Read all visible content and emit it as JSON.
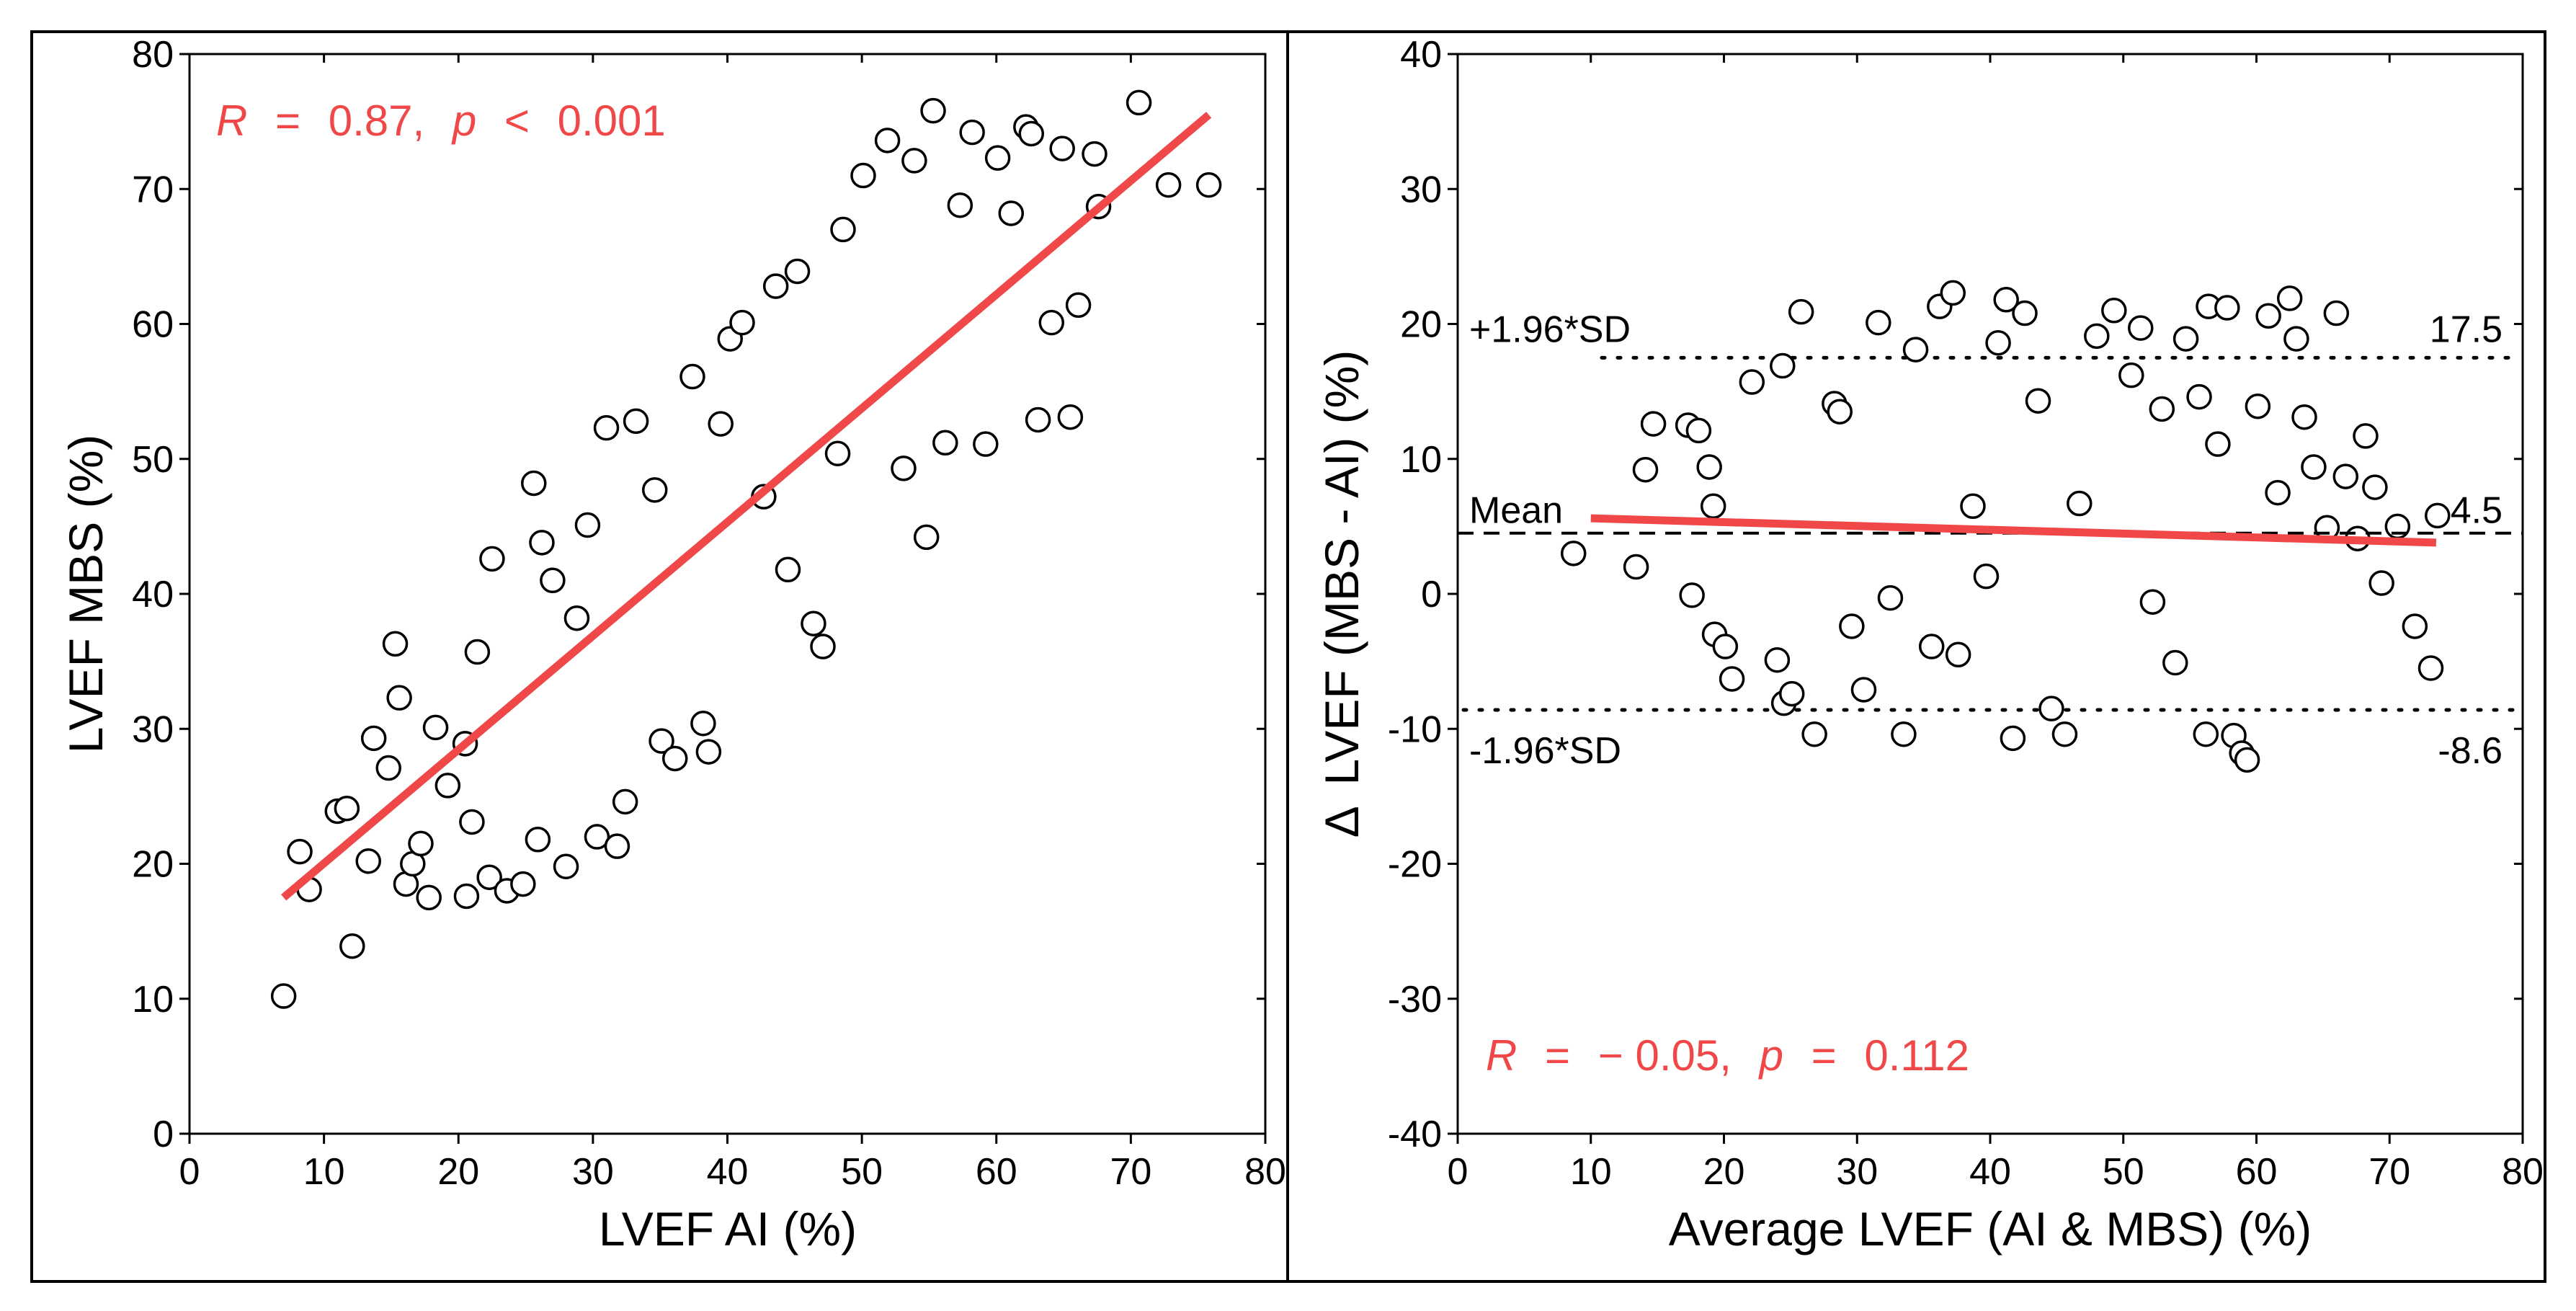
{
  "colors": {
    "fit": "#f04848",
    "stat": "#f04848",
    "axis": "#000000",
    "marker_fill": "#ffffff",
    "marker_stroke": "#000000"
  },
  "chart_data": [
    {
      "type": "scatter",
      "xlabel": "LVEF AI (%)",
      "ylabel": "LVEF MBS (%)",
      "xlim": [
        0,
        80
      ],
      "ylim": [
        0,
        80
      ],
      "xticks": [
        0,
        10,
        20,
        30,
        40,
        50,
        60,
        70,
        80
      ],
      "yticks": [
        0,
        10,
        20,
        30,
        40,
        50,
        60,
        70,
        80
      ],
      "xtick_labels": [
        "0",
        "10",
        "20",
        "30",
        "40",
        "50",
        "60",
        "70",
        "80"
      ],
      "ytick_labels": [
        "0",
        "10",
        "20",
        "30",
        "40",
        "50",
        "60",
        "70",
        "80"
      ],
      "stat_parts": [
        "R",
        "=",
        "0.87,",
        "p",
        "<",
        "0.001"
      ],
      "fit_line": {
        "x": [
          7,
          75.8
        ],
        "y": [
          17.5,
          75.5
        ]
      },
      "scatter_points": [
        [
          7.0,
          10.2
        ],
        [
          12.1,
          13.9
        ],
        [
          8.2,
          20.9
        ],
        [
          8.9,
          18.1
        ],
        [
          11.0,
          23.9
        ],
        [
          11.7,
          24.1
        ],
        [
          13.3,
          20.2
        ],
        [
          13.7,
          29.3
        ],
        [
          14.8,
          27.1
        ],
        [
          15.3,
          36.3
        ],
        [
          15.6,
          32.3
        ],
        [
          16.1,
          18.5
        ],
        [
          16.6,
          20.0
        ],
        [
          17.2,
          21.5
        ],
        [
          17.8,
          17.5
        ],
        [
          18.3,
          30.1
        ],
        [
          19.2,
          25.8
        ],
        [
          20.5,
          28.9
        ],
        [
          20.6,
          17.6
        ],
        [
          21.0,
          23.1
        ],
        [
          21.4,
          35.7
        ],
        [
          22.3,
          19.0
        ],
        [
          22.5,
          42.6
        ],
        [
          23.6,
          18.0
        ],
        [
          24.8,
          18.5
        ],
        [
          25.6,
          48.2
        ],
        [
          25.9,
          21.8
        ],
        [
          26.2,
          43.8
        ],
        [
          27.0,
          41.0
        ],
        [
          28.0,
          19.8
        ],
        [
          28.8,
          38.2
        ],
        [
          29.6,
          45.1
        ],
        [
          30.3,
          22.0
        ],
        [
          31.0,
          52.3
        ],
        [
          31.8,
          21.3
        ],
        [
          32.4,
          24.6
        ],
        [
          33.2,
          52.8
        ],
        [
          34.6,
          47.7
        ],
        [
          35.1,
          29.1
        ],
        [
          36.1,
          27.8
        ],
        [
          37.4,
          56.1
        ],
        [
          38.2,
          30.4
        ],
        [
          38.6,
          28.3
        ],
        [
          39.5,
          52.6
        ],
        [
          40.2,
          58.9
        ],
        [
          41.1,
          60.1
        ],
        [
          42.7,
          47.2
        ],
        [
          43.6,
          62.8
        ],
        [
          44.5,
          41.8
        ],
        [
          45.2,
          63.9
        ],
        [
          46.4,
          37.8
        ],
        [
          47.1,
          36.1
        ],
        [
          48.2,
          50.4
        ],
        [
          48.6,
          67.0
        ],
        [
          50.1,
          71.0
        ],
        [
          51.9,
          73.6
        ],
        [
          53.1,
          49.3
        ],
        [
          53.9,
          72.1
        ],
        [
          54.8,
          44.2
        ],
        [
          55.3,
          75.8
        ],
        [
          56.2,
          51.2
        ],
        [
          57.3,
          68.8
        ],
        [
          58.2,
          74.2
        ],
        [
          59.2,
          51.1
        ],
        [
          60.1,
          72.3
        ],
        [
          61.1,
          68.2
        ],
        [
          62.2,
          74.6
        ],
        [
          62.6,
          74.1
        ],
        [
          63.1,
          52.9
        ],
        [
          64.1,
          60.1
        ],
        [
          64.9,
          73.0
        ],
        [
          65.5,
          53.1
        ],
        [
          66.1,
          61.4
        ],
        [
          67.3,
          72.6
        ],
        [
          67.6,
          68.7
        ],
        [
          70.6,
          76.4
        ],
        [
          72.8,
          70.3
        ],
        [
          75.8,
          70.3
        ]
      ]
    },
    {
      "type": "scatter",
      "xlabel": "Average LVEF (AI & MBS) (%)",
      "ylabel_parts": [
        "Δ",
        "LVEF (MBS - AI) (%)"
      ],
      "xlim": [
        0,
        80
      ],
      "ylim": [
        -40,
        40
      ],
      "xticks": [
        0,
        10,
        20,
        30,
        40,
        50,
        60,
        70,
        80
      ],
      "yticks": [
        -40,
        -30,
        -20,
        -10,
        0,
        10,
        20,
        30,
        40
      ],
      "xtick_labels": [
        "0",
        "10",
        "20",
        "30",
        "40",
        "50",
        "60",
        "70",
        "80"
      ],
      "ytick_labels": [
        "-40",
        "-30",
        "-20",
        "-10",
        "0",
        "10",
        "20",
        "30",
        "40"
      ],
      "stat_parts": [
        "R",
        "=",
        "− 0.05,",
        "p",
        "=",
        "0.112"
      ],
      "fit_line": {
        "x": [
          10,
          73.5
        ],
        "y": [
          5.6,
          3.8
        ]
      },
      "mean": 4.5,
      "upper_loa": 17.5,
      "lower_loa": -8.6,
      "labels": {
        "mean_label": "Mean",
        "mean_value": "4.5",
        "upper_label": "+1.96*SD",
        "upper_value": "17.5",
        "lower_label": "-1.96*SD",
        "lower_value": "-8.6"
      },
      "scatter_points": [
        [
          8.7,
          3.0
        ],
        [
          13.4,
          2.0
        ],
        [
          14.1,
          9.2
        ],
        [
          14.7,
          12.6
        ],
        [
          17.3,
          12.5
        ],
        [
          18.1,
          12.1
        ],
        [
          18.9,
          9.4
        ],
        [
          19.2,
          6.5
        ],
        [
          17.6,
          -0.1
        ],
        [
          19.3,
          -3.0
        ],
        [
          20.1,
          -3.9
        ],
        [
          20.6,
          -6.3
        ],
        [
          22.1,
          15.7
        ],
        [
          24.4,
          16.9
        ],
        [
          24.0,
          -4.9
        ],
        [
          24.5,
          -8.1
        ],
        [
          25.1,
          -7.4
        ],
        [
          25.8,
          20.9
        ],
        [
          26.8,
          -10.4
        ],
        [
          28.3,
          14.1
        ],
        [
          28.7,
          13.5
        ],
        [
          29.6,
          -2.4
        ],
        [
          30.5,
          -7.1
        ],
        [
          31.6,
          20.1
        ],
        [
          32.5,
          -0.3
        ],
        [
          33.5,
          -10.4
        ],
        [
          34.4,
          18.1
        ],
        [
          35.6,
          -3.9
        ],
        [
          36.2,
          21.3
        ],
        [
          37.2,
          22.3
        ],
        [
          37.6,
          -4.5
        ],
        [
          38.7,
          6.5
        ],
        [
          39.7,
          1.3
        ],
        [
          40.6,
          18.6
        ],
        [
          41.2,
          21.8
        ],
        [
          41.7,
          -10.7
        ],
        [
          42.6,
          20.8
        ],
        [
          43.6,
          14.3
        ],
        [
          44.6,
          -8.5
        ],
        [
          45.6,
          -10.4
        ],
        [
          46.7,
          6.7
        ],
        [
          48.0,
          19.1
        ],
        [
          49.3,
          21.0
        ],
        [
          50.6,
          16.2
        ],
        [
          51.3,
          19.7
        ],
        [
          52.2,
          -0.6
        ],
        [
          52.9,
          13.7
        ],
        [
          53.9,
          -5.1
        ],
        [
          54.7,
          18.9
        ],
        [
          55.7,
          14.6
        ],
        [
          56.2,
          -10.4
        ],
        [
          56.4,
          21.3
        ],
        [
          57.1,
          11.1
        ],
        [
          57.8,
          21.2
        ],
        [
          58.3,
          -10.5
        ],
        [
          58.9,
          -11.8
        ],
        [
          59.3,
          -12.3
        ],
        [
          60.1,
          13.9
        ],
        [
          60.9,
          20.6
        ],
        [
          61.6,
          7.5
        ],
        [
          62.5,
          21.9
        ],
        [
          63.0,
          18.9
        ],
        [
          63.6,
          13.1
        ],
        [
          64.3,
          9.4
        ],
        [
          65.3,
          4.9
        ],
        [
          66.0,
          20.8
        ],
        [
          66.7,
          8.7
        ],
        [
          67.6,
          4.1
        ],
        [
          68.2,
          11.7
        ],
        [
          68.9,
          7.9
        ],
        [
          69.4,
          0.8
        ],
        [
          70.6,
          5.0
        ],
        [
          71.9,
          -2.4
        ],
        [
          73.1,
          -5.5
        ],
        [
          73.6,
          5.8
        ]
      ]
    }
  ]
}
